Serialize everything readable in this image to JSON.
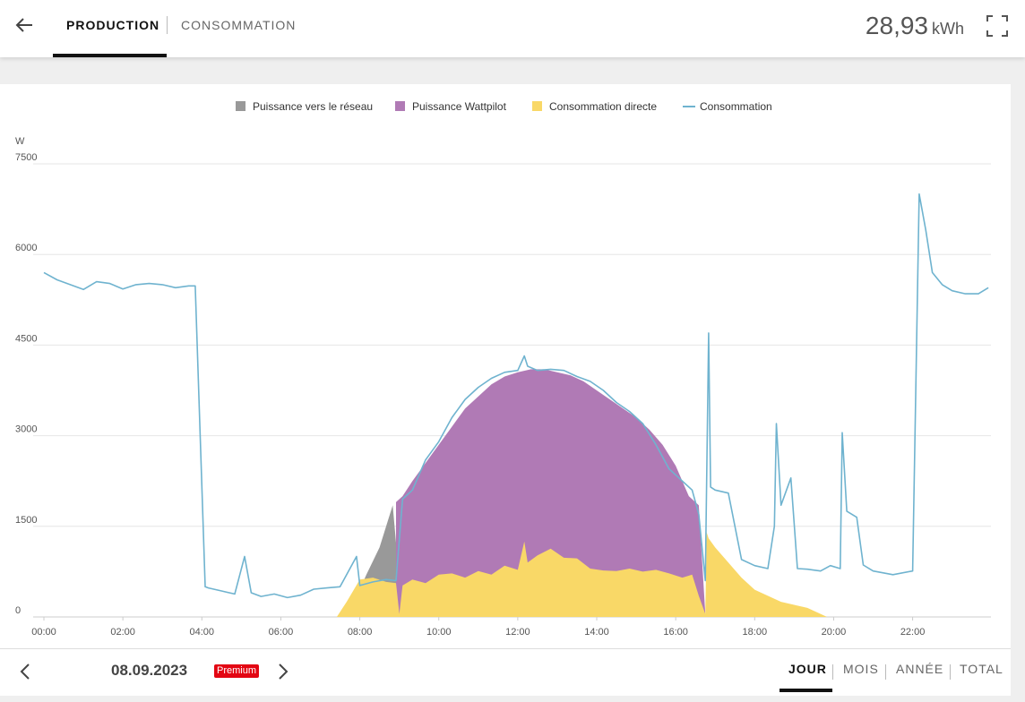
{
  "header": {
    "tabs": [
      {
        "label": "PRODUCTION",
        "active": true
      },
      {
        "label": "CONSOMMATION",
        "active": false
      }
    ],
    "energy_total": {
      "value": "28,93",
      "unit": "kWh"
    },
    "icons": {
      "back": "arrow-left-icon",
      "fullscreen": "fullscreen-icon"
    }
  },
  "colors": {
    "grid_export": "#999999",
    "wattpilot": "#b07ab5",
    "direct": "#f9d867",
    "consumption_line": "#6fb3cf",
    "premium": "#e30613"
  },
  "chart_data": {
    "type": "area",
    "ylabel": "W",
    "ylim": [
      0,
      7500
    ],
    "yticks": [
      "0",
      "1500",
      "3000",
      "4500",
      "6000",
      "7500"
    ],
    "xlim": [
      "00:00",
      "23:59"
    ],
    "xticks": [
      "00:00",
      "02:00",
      "04:00",
      "06:00",
      "08:00",
      "10:00",
      "12:00",
      "14:00",
      "16:00",
      "18:00",
      "20:00",
      "22:00"
    ],
    "legend": [
      "Puissance vers le réseau",
      "Puissance Wattpilot",
      "Consommation directe",
      "Consommation"
    ],
    "legend_position": "top",
    "grid": true,
    "series": [
      {
        "name": "Consommation directe",
        "type": "area",
        "color": "#f9d867",
        "x": [
          "07:25",
          "07:40",
          "08:00",
          "08:20",
          "08:40",
          "08:55",
          "09:00",
          "09:05",
          "09:20",
          "09:40",
          "10:00",
          "10:20",
          "10:40",
          "11:00",
          "11:20",
          "11:40",
          "12:00",
          "12:10",
          "12:15",
          "12:30",
          "12:50",
          "13:10",
          "13:30",
          "13:50",
          "14:10",
          "14:30",
          "14:50",
          "15:10",
          "15:30",
          "15:50",
          "16:10",
          "16:25",
          "16:35",
          "16:45",
          "16:47",
          "16:50",
          "17:00",
          "17:20",
          "17:40",
          "18:00",
          "18:20",
          "18:40",
          "19:00",
          "19:20",
          "19:40",
          "19:50"
        ],
        "values": [
          0,
          250,
          620,
          650,
          580,
          560,
          50,
          520,
          620,
          560,
          700,
          720,
          650,
          760,
          700,
          850,
          780,
          1250,
          900,
          1020,
          1130,
          980,
          970,
          800,
          770,
          760,
          800,
          750,
          780,
          720,
          650,
          700,
          350,
          50,
          1400,
          1300,
          1150,
          900,
          650,
          450,
          350,
          250,
          200,
          150,
          50,
          0
        ]
      },
      {
        "name": "Puissance Wattpilot",
        "type": "area",
        "color": "#b07ab5",
        "x": [
          "08:55",
          "09:05",
          "09:20",
          "09:40",
          "10:00",
          "10:20",
          "10:40",
          "11:00",
          "11:20",
          "11:40",
          "12:00",
          "12:20",
          "12:40",
          "13:00",
          "13:20",
          "13:40",
          "14:00",
          "14:20",
          "14:40",
          "15:00",
          "15:20",
          "15:40",
          "16:00",
          "16:20",
          "16:35",
          "16:45"
        ],
        "values": [
          1900,
          2000,
          2250,
          2550,
          2850,
          3150,
          3450,
          3650,
          3850,
          3980,
          4050,
          4100,
          4100,
          4050,
          4000,
          3900,
          3750,
          3600,
          3450,
          3300,
          3100,
          2850,
          2500,
          2000,
          1850,
          50
        ]
      },
      {
        "name": "Puissance vers le réseau",
        "type": "area",
        "color": "#999999",
        "x": [
          "07:25",
          "07:50",
          "08:10",
          "08:30",
          "08:50",
          "09:05"
        ],
        "values": [
          0,
          200,
          700,
          1150,
          1850,
          0
        ]
      },
      {
        "name": "Consommation",
        "type": "line",
        "color": "#6fb3cf",
        "x": [
          "00:00",
          "00:20",
          "00:40",
          "01:00",
          "01:20",
          "01:40",
          "02:00",
          "02:20",
          "02:40",
          "03:00",
          "03:20",
          "03:40",
          "03:50",
          "04:05",
          "04:10",
          "04:30",
          "04:50",
          "05:05",
          "05:15",
          "05:30",
          "05:50",
          "06:10",
          "06:30",
          "06:50",
          "07:10",
          "07:30",
          "07:55",
          "08:00",
          "08:20",
          "08:40",
          "08:55",
          "09:05",
          "09:20",
          "09:40",
          "10:00",
          "10:20",
          "10:40",
          "11:00",
          "11:20",
          "11:40",
          "12:00",
          "12:10",
          "12:15",
          "12:30",
          "12:50",
          "13:10",
          "13:30",
          "13:50",
          "14:10",
          "14:30",
          "14:50",
          "15:10",
          "15:30",
          "15:50",
          "16:10",
          "16:25",
          "16:35",
          "16:45",
          "16:50",
          "16:53",
          "17:00",
          "17:20",
          "17:40",
          "18:00",
          "18:20",
          "18:30",
          "18:33",
          "18:40",
          "18:55",
          "19:05",
          "19:20",
          "19:40",
          "19:55",
          "20:10",
          "20:13",
          "20:20",
          "20:35",
          "20:45",
          "21:00",
          "21:30",
          "22:00",
          "22:10",
          "22:20",
          "22:30",
          "22:45",
          "23:00",
          "23:20",
          "23:40",
          "23:55"
        ],
        "values": [
          5700,
          5580,
          5500,
          5420,
          5550,
          5520,
          5430,
          5500,
          5520,
          5500,
          5450,
          5480,
          5480,
          500,
          480,
          430,
          380,
          1000,
          400,
          340,
          380,
          320,
          360,
          460,
          480,
          500,
          1000,
          520,
          580,
          620,
          600,
          1950,
          2100,
          2600,
          2900,
          3300,
          3600,
          3800,
          3950,
          4050,
          4080,
          4320,
          4150,
          4080,
          4100,
          4080,
          3980,
          3900,
          3750,
          3550,
          3400,
          3200,
          2850,
          2450,
          2250,
          2100,
          1700,
          600,
          4700,
          2150,
          2100,
          2050,
          950,
          850,
          800,
          1500,
          3200,
          1850,
          2300,
          800,
          790,
          760,
          850,
          800,
          3050,
          1750,
          1650,
          860,
          760,
          700,
          760,
          7000,
          6400,
          5700,
          5500,
          5400,
          5350,
          5350,
          5450
        ]
      }
    ]
  },
  "footer": {
    "date": "08.09.2023",
    "badge": "Premium",
    "periods": [
      {
        "label": "JOUR",
        "active": true
      },
      {
        "label": "MOIS",
        "active": false
      },
      {
        "label": "ANNÉE",
        "active": false
      },
      {
        "label": "TOTAL",
        "active": false
      }
    ],
    "icons": {
      "prev": "chevron-left-icon",
      "next": "chevron-right-icon"
    }
  }
}
